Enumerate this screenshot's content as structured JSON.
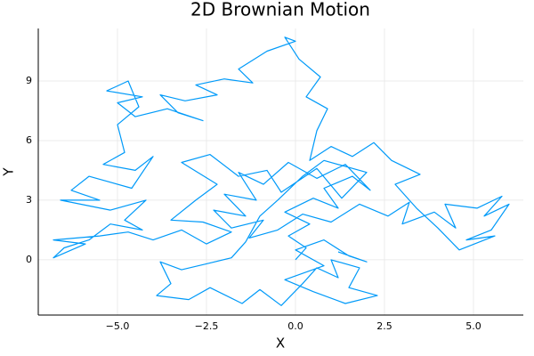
{
  "chart_data": {
    "type": "line",
    "title": "2D Brownian Motion",
    "x_label": "X",
    "y_label": "Y",
    "color": "#009af9",
    "grid": true,
    "xlim": [
      -7.225,
      6.4
    ],
    "ylim": [
      -2.78,
      11.64
    ],
    "xticks": [
      {
        "value": -5,
        "label": "−5.0"
      },
      {
        "value": -2.5,
        "label": "−2.5"
      },
      {
        "value": 0,
        "label": "0.0"
      },
      {
        "value": 2.5,
        "label": "2.5"
      },
      {
        "value": 5,
        "label": "5.0"
      }
    ],
    "yticks": [
      0,
      3,
      6,
      9
    ],
    "x": [
      0,
      0.3,
      -0.2,
      0.4,
      -0.3,
      0.5,
      1.2,
      0.8,
      1.6,
      2.1,
      1.4,
      0.6,
      -0.2,
      -0.9,
      -1.6,
      -1.1,
      -2.0,
      -1.4,
      -2.3,
      -1.8,
      -0.9,
      -1.3,
      -0.5,
      0.2,
      1.0,
      1.8,
      2.6,
      3.2,
      3.0,
      3.9,
      4.5,
      4.2,
      5.1,
      5.8,
      5.3,
      6.0,
      5.5,
      4.8,
      5.6,
      4.6,
      4.0,
      3.4,
      2.8,
      3.5,
      2.7,
      2.2,
      1.6,
      1.0,
      0.4,
      0.6,
      0.9,
      0.3,
      0.7,
      0.1,
      -0.3,
      0.0,
      -0.8,
      -1.6,
      -1.2,
      -2.0,
      -2.8,
      -2.2,
      -3.1,
      -3.8,
      -3.3,
      -2.6,
      -3.6,
      -4.5,
      -5.0,
      -4.3,
      -5.3,
      -4.7,
      -4.4,
      -5.0,
      -4.8,
      -5.4,
      -4.5,
      -4.0,
      -4.6,
      -5.8,
      -6.3,
      -5.5,
      -6.6,
      -5.2,
      -4.2,
      -4.8,
      -4.3,
      -5.2,
      -5.8,
      -6.5,
      -6.8,
      -5.9,
      -6.8,
      -5.5,
      -4.7,
      -4.0,
      -3.2,
      -2.5,
      -1.8,
      -2.6,
      -3.5,
      -2.8,
      -2.2,
      -3.2,
      -2.4,
      -1.6,
      -0.8,
      -0.4,
      0.6,
      1.3,
      2.0,
      0.8,
      0.2,
      -0.5,
      -1.0,
      -1.4,
      -1.8,
      -2.5,
      -3.2,
      -3.8,
      -3.5,
      -3.9,
      -3.0,
      -2.4,
      -1.5,
      -1.0,
      -0.4,
      0.2,
      0.6,
      1.2,
      1.0,
      1.8,
      1.5,
      2.3,
      1.4,
      0.5,
      -0.3,
      0.8,
      0.0,
      0.8,
      1.5,
      2.0,
      1.2
    ],
    "values": [
      0,
      0.6,
      1.2,
      1.8,
      2.4,
      3.1,
      2.6,
      3.6,
      4.2,
      3.5,
      4.8,
      4.1,
      4.9,
      3.8,
      4.4,
      3.0,
      3.3,
      2.2,
      2.5,
      1.6,
      2.0,
      1.1,
      1.5,
      2.3,
      1.9,
      2.8,
      2.2,
      2.9,
      1.8,
      2.4,
      1.6,
      2.8,
      2.6,
      3.2,
      2.2,
      2.8,
      1.5,
      1.0,
      1.2,
      0.5,
      1.6,
      2.6,
      3.8,
      4.3,
      5.0,
      5.9,
      5.2,
      5.7,
      5.0,
      6.5,
      7.6,
      8.2,
      9.2,
      10.1,
      11.2,
      11.0,
      10.5,
      9.6,
      8.9,
      9.1,
      8.8,
      8.3,
      8.0,
      8.3,
      7.4,
      7.0,
      7.6,
      7.2,
      7.9,
      8.2,
      8.5,
      9.0,
      7.7,
      6.8,
      5.4,
      4.8,
      4.5,
      5.2,
      3.6,
      4.2,
      3.5,
      3.0,
      3.0,
      2.5,
      3.0,
      2.0,
      1.5,
      1.8,
      1.0,
      0.6,
      0.1,
      0.8,
      1.0,
      1.2,
      1.4,
      1.0,
      1.5,
      0.8,
      1.4,
      1.9,
      2.0,
      3.0,
      3.8,
      4.9,
      5.3,
      4.2,
      4.5,
      3.4,
      4.6,
      3.1,
      4.4,
      5.0,
      4.2,
      3.0,
      2.2,
      0.9,
      0.1,
      -0.2,
      -0.5,
      -0.1,
      -1.2,
      -1.8,
      -2.0,
      -1.4,
      -2.2,
      -1.5,
      -2.3,
      -1.2,
      -0.4,
      -0.9,
      0.0,
      -0.4,
      -1.4,
      -1.8,
      -2.2,
      -1.6,
      -1.0,
      -0.3,
      0.5,
      1.0,
      0.2,
      -0.1,
      0.4
    ]
  }
}
